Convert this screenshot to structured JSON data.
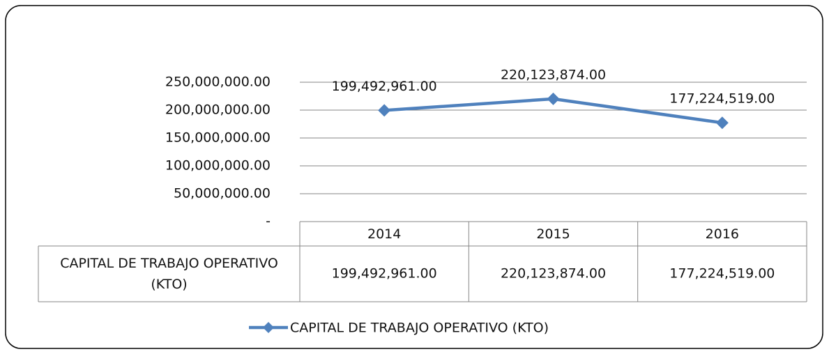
{
  "chart_data": {
    "type": "line",
    "categories": [
      "2014",
      "2015",
      "2016"
    ],
    "series": [
      {
        "name": "CAPITAL DE TRABAJO OPERATIVO (KTO)",
        "color": "#4f81bd",
        "values": [
          199492961,
          220123874,
          177224519
        ],
        "value_labels": [
          "199,492,961.00",
          "220,123,874.00",
          "177,224,519.00"
        ]
      }
    ],
    "ylim": [
      0,
      250000000
    ],
    "yticks": [
      {
        "value": 0,
        "label": "-"
      },
      {
        "value": 50000000,
        "label": "50,000,000.00"
      },
      {
        "value": 100000000,
        "label": "100,000,000.00"
      },
      {
        "value": 150000000,
        "label": "150,000,000.00"
      },
      {
        "value": 200000000,
        "label": "200,000,000.00"
      },
      {
        "value": 250000000,
        "label": "250,000,000.00"
      }
    ],
    "grid": true,
    "data_table": true,
    "legend": "bottom"
  }
}
